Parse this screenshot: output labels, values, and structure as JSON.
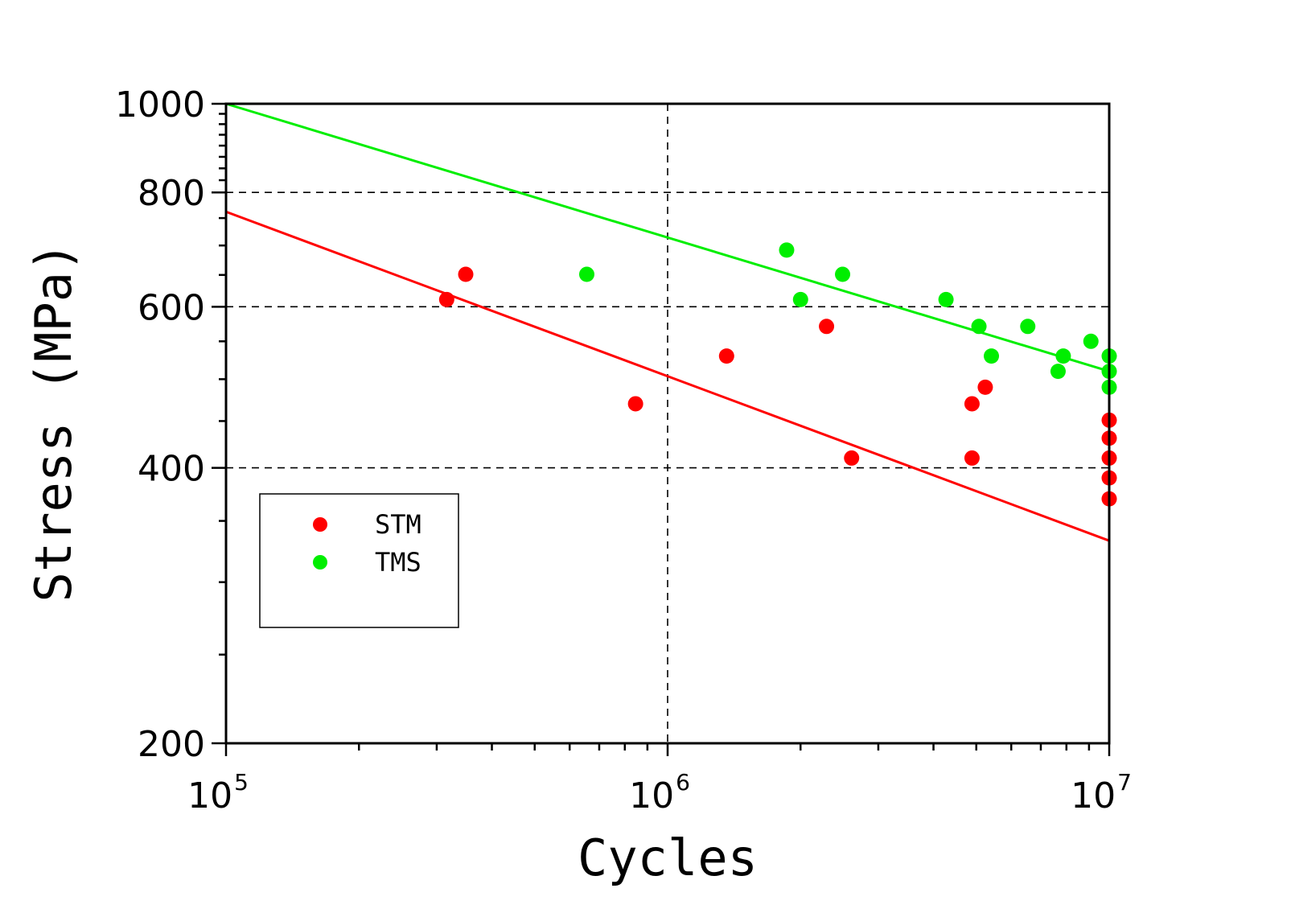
{
  "chart_data": {
    "type": "scatter",
    "title": "",
    "xlabel": "Cycles",
    "ylabel": "Stress (MPa)",
    "xscale": "log",
    "yscale": "log",
    "xlim": [
      100000,
      10000000
    ],
    "ylim": [
      200,
      1000
    ],
    "x_ticks": [
      {
        "value": 100000,
        "base": "10",
        "exp": "5"
      },
      {
        "value": 1000000,
        "base": "10",
        "exp": "6"
      },
      {
        "value": 10000000,
        "base": "10",
        "exp": "7"
      }
    ],
    "y_ticks": [
      {
        "value": 1000,
        "label": "1000"
      },
      {
        "value": 800,
        "label": "800"
      },
      {
        "value": 600,
        "label": "600"
      },
      {
        "value": 400,
        "label": "400"
      },
      {
        "value": 200,
        "label": "200"
      }
    ],
    "grid": {
      "x": [
        1000000
      ],
      "y": [
        800,
        600,
        400
      ],
      "style": "dashed"
    },
    "legend": {
      "placement": "lower-left"
    },
    "series": [
      {
        "name": "STM",
        "color": "#ff0000",
        "points": [
          {
            "x": 316000,
            "y": 611
          },
          {
            "x": 349000,
            "y": 651
          },
          {
            "x": 846000,
            "y": 470
          },
          {
            "x": 1360000,
            "y": 530
          },
          {
            "x": 2290000,
            "y": 571
          },
          {
            "x": 2610000,
            "y": 410
          },
          {
            "x": 4890000,
            "y": 470
          },
          {
            "x": 4890000,
            "y": 410
          },
          {
            "x": 5240000,
            "y": 490
          },
          {
            "x": 10000000,
            "y": 451
          },
          {
            "x": 10000000,
            "y": 431
          },
          {
            "x": 10000000,
            "y": 410
          },
          {
            "x": 10000000,
            "y": 390
          },
          {
            "x": 10000000,
            "y": 370
          }
        ],
        "fit_line": {
          "x": [
            100000,
            10000000
          ],
          "y": [
            762,
            333
          ]
        }
      },
      {
        "name": "TMS",
        "color": "#00ee00",
        "points": [
          {
            "x": 656000,
            "y": 651
          },
          {
            "x": 1860000,
            "y": 692
          },
          {
            "x": 2000000,
            "y": 611
          },
          {
            "x": 2490000,
            "y": 651
          },
          {
            "x": 4270000,
            "y": 611
          },
          {
            "x": 5070000,
            "y": 571
          },
          {
            "x": 5410000,
            "y": 530
          },
          {
            "x": 6540000,
            "y": 571
          },
          {
            "x": 7660000,
            "y": 510
          },
          {
            "x": 7870000,
            "y": 530
          },
          {
            "x": 9090000,
            "y": 550
          },
          {
            "x": 10000000,
            "y": 530
          },
          {
            "x": 10000000,
            "y": 510
          },
          {
            "x": 10000000,
            "y": 490
          }
        ],
        "fit_line": {
          "x": [
            100000,
            10000000
          ],
          "y": [
            1000,
            510
          ]
        }
      }
    ]
  }
}
